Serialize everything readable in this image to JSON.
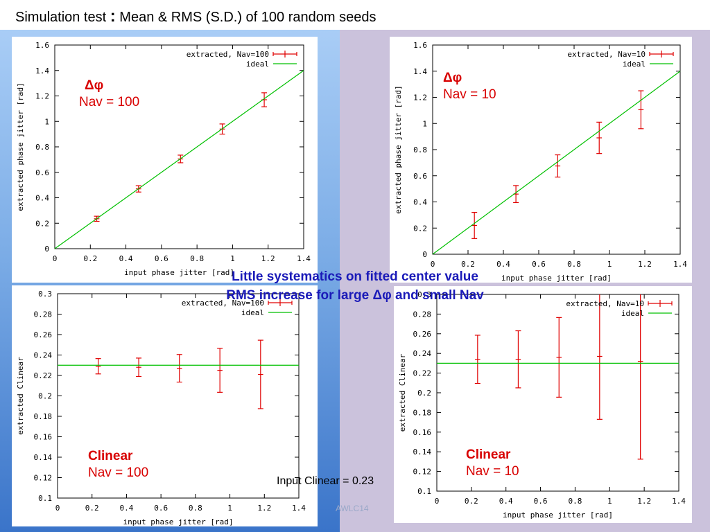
{
  "slide": {
    "title_pre": "Simulation test",
    "title_colon": ":",
    "title_post": "Mean & RMS (S.D.) of 100  random seeds",
    "summary_line1": "Little  systematics on fitted center value",
    "summary_line2": "RMS increase for large Δφ and small Nav",
    "input_clinear": "Input Clinear = 0.23",
    "footer": "AWLC14"
  },
  "annotations": {
    "p1_a": "Δφ",
    "p1_b": "Nav = 100",
    "p2_a": "Δφ",
    "p2_b": "Nav = 10",
    "p3_a": "Clinear",
    "p3_b": "Nav = 100",
    "p4_a": "Clinear",
    "p4_b": "Nav = 10"
  },
  "chart_data": [
    {
      "type": "scatter",
      "xlabel": "input phase jitter [rad]",
      "ylabel": "extracted phase jitter [rad]",
      "xlim": [
        0,
        1.4
      ],
      "ylim": [
        0,
        1.6
      ],
      "xticks": [
        0,
        0.2,
        0.4,
        0.6,
        0.8,
        1,
        1.2,
        1.4
      ],
      "yticks": [
        0,
        0.2,
        0.4,
        0.6,
        0.8,
        1,
        1.2,
        1.4,
        1.6
      ],
      "legend_position": "top-right",
      "series": [
        {
          "name": "extracted, Nav=100",
          "kind": "errorbar",
          "color": "#e00000",
          "x": [
            0.236,
            0.471,
            0.707,
            0.942,
            1.178
          ],
          "y": [
            0.235,
            0.47,
            0.705,
            0.94,
            1.17
          ],
          "yerr": [
            0.02,
            0.025,
            0.03,
            0.04,
            0.055
          ],
          "xerr": 0.015
        },
        {
          "name": "ideal",
          "kind": "line",
          "color": "#00c000",
          "x": [
            0,
            1.4
          ],
          "y": [
            0,
            1.4
          ]
        }
      ]
    },
    {
      "type": "scatter",
      "xlabel": "input phase jitter [rad]",
      "ylabel": "extracted phase jitter [rad]",
      "xlim": [
        0,
        1.4
      ],
      "ylim": [
        0,
        1.6
      ],
      "xticks": [
        0,
        0.2,
        0.4,
        0.6,
        0.8,
        1,
        1.2,
        1.4
      ],
      "yticks": [
        0,
        0.2,
        0.4,
        0.6,
        0.8,
        1,
        1.2,
        1.4,
        1.6
      ],
      "legend_position": "top-right",
      "series": [
        {
          "name": "extracted, Nav=10",
          "kind": "errorbar",
          "color": "#e00000",
          "x": [
            0.236,
            0.471,
            0.707,
            0.942,
            1.178
          ],
          "y": [
            0.22,
            0.46,
            0.675,
            0.89,
            1.105
          ],
          "yerr": [
            0.1,
            0.065,
            0.085,
            0.12,
            0.145
          ],
          "xerr": 0.015
        },
        {
          "name": "ideal",
          "kind": "line",
          "color": "#00c000",
          "x": [
            0,
            1.4
          ],
          "y": [
            0,
            1.4
          ]
        }
      ]
    },
    {
      "type": "scatter",
      "xlabel": "input phase jitter [rad]",
      "ylabel": "extracted Clinear",
      "xlim": [
        0,
        1.4
      ],
      "ylim": [
        0.1,
        0.3
      ],
      "xticks": [
        0,
        0.2,
        0.4,
        0.6,
        0.8,
        1,
        1.2,
        1.4
      ],
      "yticks": [
        0.1,
        0.12,
        0.14,
        0.16,
        0.18,
        0.2,
        0.22,
        0.24,
        0.26,
        0.28,
        0.3
      ],
      "legend_position": "top-right",
      "series": [
        {
          "name": "extracted, Nav=100",
          "kind": "errorbar",
          "color": "#e00000",
          "x": [
            0.236,
            0.471,
            0.707,
            0.942,
            1.178
          ],
          "y": [
            0.229,
            0.228,
            0.227,
            0.225,
            0.221
          ],
          "yerr": [
            0.0075,
            0.009,
            0.0135,
            0.0215,
            0.0335
          ],
          "xerr": 0.015
        },
        {
          "name": "ideal",
          "kind": "line",
          "color": "#00c000",
          "x": [
            0,
            1.4
          ],
          "y": [
            0.23,
            0.23
          ]
        }
      ]
    },
    {
      "type": "scatter",
      "xlabel": "input phase jitter [rad]",
      "ylabel": "extracted Clinear",
      "xlim": [
        0,
        1.4
      ],
      "ylim": [
        0.1,
        0.3
      ],
      "xticks": [
        0,
        0.2,
        0.4,
        0.6,
        0.8,
        1,
        1.2,
        1.4
      ],
      "yticks": [
        0.1,
        0.12,
        0.14,
        0.16,
        0.18,
        0.2,
        0.22,
        0.24,
        0.26,
        0.28,
        0.3
      ],
      "legend_position": "top-right",
      "series": [
        {
          "name": "extracted, Nav=10",
          "kind": "errorbar",
          "color": "#e00000",
          "x": [
            0.236,
            0.471,
            0.707,
            0.942,
            1.178
          ],
          "y": [
            0.234,
            0.234,
            0.236,
            0.237,
            0.232
          ],
          "yerr": [
            0.0245,
            0.029,
            0.0405,
            0.064,
            0.0995
          ],
          "xerr": 0.015
        },
        {
          "name": "ideal",
          "kind": "line",
          "color": "#00c000",
          "x": [
            0,
            1.4
          ],
          "y": [
            0.23,
            0.23
          ]
        }
      ]
    }
  ]
}
